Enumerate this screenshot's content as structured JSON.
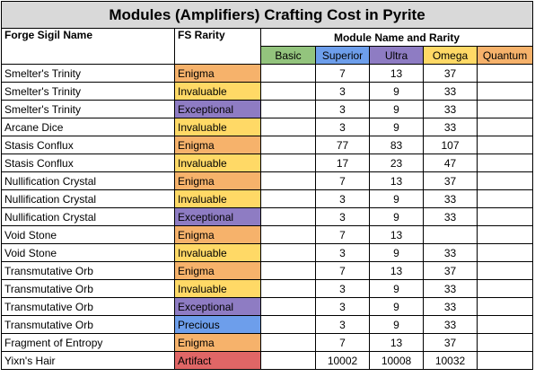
{
  "title": "Modules (Amplifiers) Crafting Cost in Pyrite",
  "headers": {
    "sigil_name": "Forge Sigil Name",
    "fs_rarity": "FS Rarity",
    "module_group": "Module Name and Rarity"
  },
  "tiers": [
    {
      "label": "Basic",
      "color": "#93c47d"
    },
    {
      "label": "Superior",
      "color": "#6d9eeb"
    },
    {
      "label": "Ultra",
      "color": "#8e7cc3"
    },
    {
      "label": "Omega",
      "color": "#ffd966"
    },
    {
      "label": "Quantum",
      "color": "#f6b26b"
    }
  ],
  "rarity_colors": {
    "Enigma": "#f6b26b",
    "Invaluable": "#ffd966",
    "Exceptional": "#8e7cc3",
    "Precious": "#6d9eeb",
    "Artifact": "#e06666"
  },
  "rows": [
    {
      "name": "Smelter's Trinity",
      "rarity": "Enigma",
      "basic": "",
      "superior": "7",
      "ultra": "13",
      "omega": "37",
      "quantum": ""
    },
    {
      "name": "Smelter's Trinity",
      "rarity": "Invaluable",
      "basic": "",
      "superior": "3",
      "ultra": "9",
      "omega": "33",
      "quantum": ""
    },
    {
      "name": "Smelter's Trinity",
      "rarity": "Exceptional",
      "basic": "",
      "superior": "3",
      "ultra": "9",
      "omega": "33",
      "quantum": ""
    },
    {
      "name": "Arcane Dice",
      "rarity": "Invaluable",
      "basic": "",
      "superior": "3",
      "ultra": "9",
      "omega": "33",
      "quantum": ""
    },
    {
      "name": "Stasis Conflux",
      "rarity": "Enigma",
      "basic": "",
      "superior": "77",
      "ultra": "83",
      "omega": "107",
      "quantum": ""
    },
    {
      "name": "Stasis Conflux",
      "rarity": "Invaluable",
      "basic": "",
      "superior": "17",
      "ultra": "23",
      "omega": "47",
      "quantum": ""
    },
    {
      "name": "Nullification Crystal",
      "rarity": "Enigma",
      "basic": "",
      "superior": "7",
      "ultra": "13",
      "omega": "37",
      "quantum": ""
    },
    {
      "name": "Nullification Crystal",
      "rarity": "Invaluable",
      "basic": "",
      "superior": "3",
      "ultra": "9",
      "omega": "33",
      "quantum": ""
    },
    {
      "name": "Nullification Crystal",
      "rarity": "Exceptional",
      "basic": "",
      "superior": "3",
      "ultra": "9",
      "omega": "33",
      "quantum": ""
    },
    {
      "name": "Void Stone",
      "rarity": "Enigma",
      "basic": "",
      "superior": "7",
      "ultra": "13",
      "omega": "",
      "quantum": ""
    },
    {
      "name": "Void Stone",
      "rarity": "Invaluable",
      "basic": "",
      "superior": "3",
      "ultra": "9",
      "omega": "33",
      "quantum": ""
    },
    {
      "name": "Transmutative Orb",
      "rarity": "Enigma",
      "basic": "",
      "superior": "7",
      "ultra": "13",
      "omega": "37",
      "quantum": ""
    },
    {
      "name": "Transmutative Orb",
      "rarity": "Invaluable",
      "basic": "",
      "superior": "3",
      "ultra": "9",
      "omega": "33",
      "quantum": ""
    },
    {
      "name": "Transmutative Orb",
      "rarity": "Exceptional",
      "basic": "",
      "superior": "3",
      "ultra": "9",
      "omega": "33",
      "quantum": ""
    },
    {
      "name": "Transmutative Orb",
      "rarity": "Precious",
      "basic": "",
      "superior": "3",
      "ultra": "9",
      "omega": "33",
      "quantum": ""
    },
    {
      "name": "Fragment of Entropy",
      "rarity": "Enigma",
      "basic": "",
      "superior": "7",
      "ultra": "13",
      "omega": "37",
      "quantum": ""
    },
    {
      "name": "Yixn's Hair",
      "rarity": "Artifact",
      "basic": "",
      "superior": "10002",
      "ultra": "10008",
      "omega": "10032",
      "quantum": ""
    }
  ]
}
